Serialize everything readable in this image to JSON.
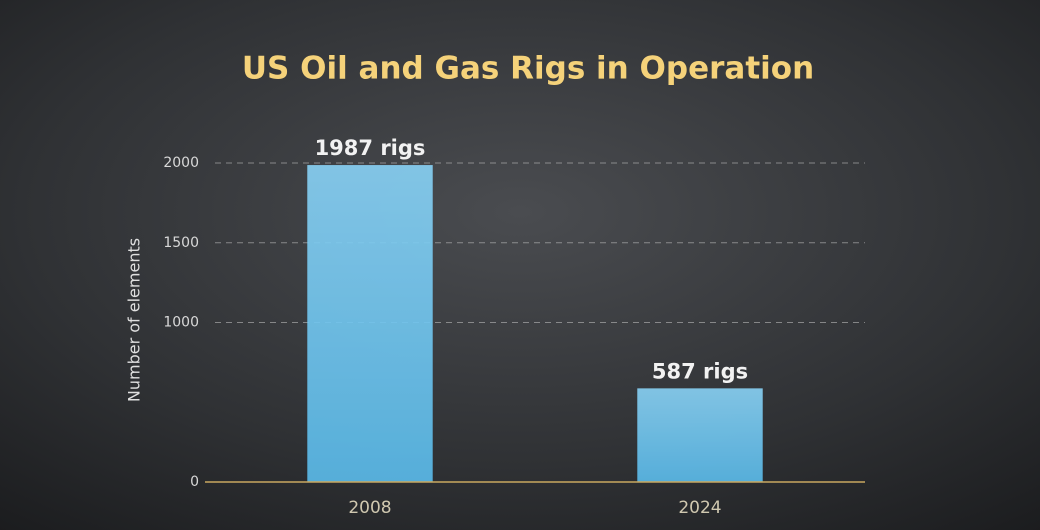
{
  "chart_data": {
    "type": "bar",
    "title": "US Oil and Gas Rigs in Operation",
    "y_label": "Number of elements",
    "categories": [
      "2008",
      "2024"
    ],
    "values": [
      1987,
      587
    ],
    "value_labels": [
      "1987 rigs",
      "587 rigs"
    ],
    "color": "#5bbcec",
    "ylim": [
      0,
      2000
    ],
    "yticks": [
      0,
      1000,
      1500,
      2000
    ],
    "grid": true
  }
}
